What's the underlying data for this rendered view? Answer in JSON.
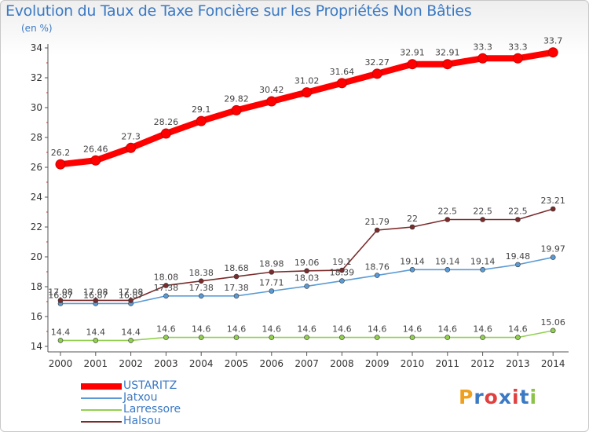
{
  "header": {
    "title": "Evolution du Taux de Taxe Foncière sur les Propriétés Non Bâties",
    "unit": "(en %)"
  },
  "logo": {
    "text": "Proxiti",
    "colors": [
      "#f0a020",
      "#3a79c4",
      "#e04040",
      "#3a79c4",
      "#e04040",
      "#3a79c4",
      "#8bc34a"
    ]
  },
  "chart_data": {
    "type": "line",
    "x": [
      "2000",
      "2001",
      "2002",
      "2003",
      "2004",
      "2005",
      "2006",
      "2007",
      "2008",
      "2009",
      "2010",
      "2011",
      "2012",
      "2013",
      "2014"
    ],
    "ylim": [
      14,
      34
    ],
    "yticks": [
      14,
      16,
      18,
      20,
      22,
      24,
      26,
      28,
      30,
      32,
      34
    ],
    "grid": false,
    "legend_position": "bottom-left",
    "series": [
      {
        "name": "USTARITZ",
        "color": "#ff0000",
        "values": [
          26.2,
          26.46,
          27.3,
          28.26,
          29.1,
          29.82,
          30.42,
          31.02,
          31.64,
          32.27,
          32.91,
          32.91,
          33.3,
          33.3,
          33.7
        ],
        "labels": [
          "26.2",
          "26.46",
          "27.3",
          "28.26",
          "29.1",
          "29.82",
          "30.42",
          "31.02",
          "31.64",
          "32.27",
          "32.91",
          "32.91",
          "33.3",
          "33.3",
          "33.7"
        ]
      },
      {
        "name": "Jatxou",
        "color": "#5b9bd5",
        "values": [
          16.87,
          16.87,
          16.87,
          17.38,
          17.38,
          17.38,
          17.71,
          18.03,
          18.39,
          18.76,
          19.14,
          19.14,
          19.14,
          19.48,
          19.97
        ],
        "labels": [
          "16.87",
          "16.87",
          "16.87",
          "17.38",
          "17.38",
          "17.38",
          "17.71",
          "18.03",
          "18.39",
          "18.76",
          "19.14",
          "19.14",
          "19.14",
          "19.48",
          "19.97"
        ]
      },
      {
        "name": "Larressore",
        "color": "#92d050",
        "values": [
          14.4,
          14.4,
          14.4,
          14.6,
          14.6,
          14.6,
          14.6,
          14.6,
          14.6,
          14.6,
          14.6,
          14.6,
          14.6,
          14.6,
          15.06
        ],
        "labels": [
          "14.4",
          "14.4",
          "14.4",
          "14.6",
          "14.6",
          "14.6",
          "14.6",
          "14.6",
          "14.6",
          "14.6",
          "14.6",
          "14.6",
          "14.6",
          "14.6",
          "15.06"
        ]
      },
      {
        "name": "Halsou",
        "color": "#7b2b2b",
        "values": [
          17.08,
          17.08,
          17.08,
          18.08,
          18.38,
          18.68,
          18.98,
          19.06,
          19.1,
          21.79,
          22,
          22.5,
          22.5,
          22.5,
          23.21
        ],
        "labels": [
          "17.08",
          "17.08",
          "17.08",
          "18.08",
          "18.38",
          "18.68",
          "18.98",
          "19.06",
          "19.1",
          "21.79",
          "22",
          "22.5",
          "22.5",
          "22.5",
          "23.21"
        ]
      }
    ]
  }
}
